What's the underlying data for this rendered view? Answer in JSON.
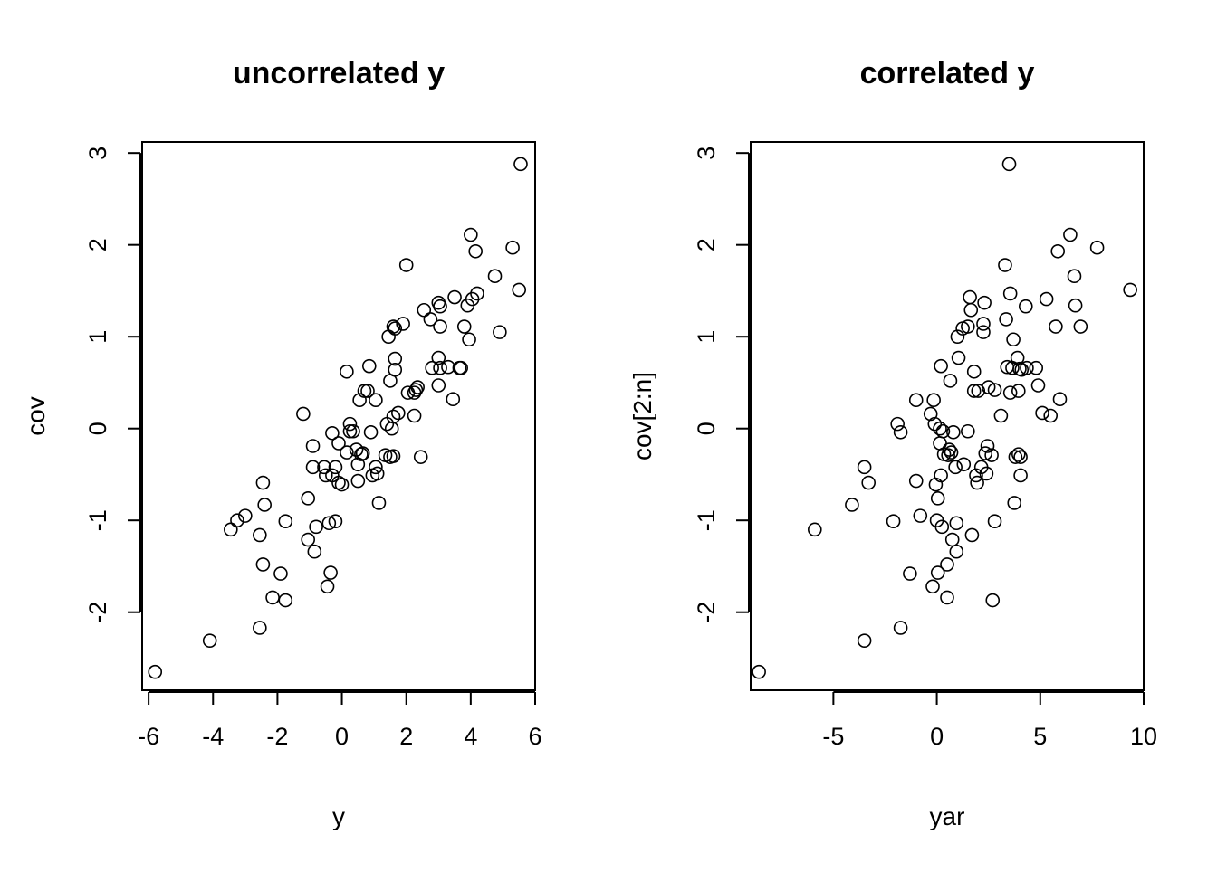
{
  "chart_data": [
    {
      "type": "scatter",
      "title": "uncorrelated y",
      "xlabel": "y",
      "ylabel": "cov",
      "xlim": [
        -6.2,
        6.0
      ],
      "ylim": [
        -2.85,
        3.12
      ],
      "xticks": [
        -6,
        -4,
        -2,
        0,
        2,
        4,
        6
      ],
      "yticks": [
        -2,
        -1,
        0,
        1,
        2,
        3
      ],
      "grid": false,
      "points": [
        [
          -5.8,
          -2.65
        ],
        [
          -4.1,
          -2.31
        ],
        [
          -3.45,
          -1.1
        ],
        [
          -3.25,
          -1.0
        ],
        [
          -3.0,
          -0.95
        ],
        [
          -2.55,
          -1.16
        ],
        [
          -2.45,
          -0.59
        ],
        [
          -2.4,
          -0.83
        ],
        [
          -2.45,
          -1.48
        ],
        [
          -2.55,
          -2.17
        ],
        [
          -2.15,
          -1.84
        ],
        [
          -1.9,
          -1.58
        ],
        [
          -1.75,
          -1.87
        ],
        [
          -1.75,
          -1.01
        ],
        [
          -1.2,
          0.16
        ],
        [
          -1.05,
          -0.76
        ],
        [
          -1.05,
          -1.21
        ],
        [
          -0.9,
          -0.19
        ],
        [
          -0.9,
          -0.42
        ],
        [
          -0.85,
          -1.34
        ],
        [
          -0.8,
          -1.07
        ],
        [
          -0.55,
          -0.42
        ],
        [
          -0.5,
          -0.51
        ],
        [
          -0.45,
          -1.72
        ],
        [
          -0.4,
          -1.03
        ],
        [
          -0.35,
          -1.57
        ],
        [
          -0.3,
          -0.05
        ],
        [
          -0.3,
          -0.51
        ],
        [
          -0.2,
          -0.42
        ],
        [
          -0.2,
          -1.01
        ],
        [
          -0.1,
          -0.16
        ],
        [
          -0.1,
          -0.59
        ],
        [
          0.0,
          -0.61
        ],
        [
          0.15,
          0.62
        ],
        [
          0.15,
          -0.26
        ],
        [
          0.25,
          0.05
        ],
        [
          0.25,
          -0.03
        ],
        [
          0.35,
          -0.03
        ],
        [
          0.45,
          -0.23
        ],
        [
          0.5,
          -0.39
        ],
        [
          0.5,
          -0.57
        ],
        [
          0.55,
          0.31
        ],
        [
          0.6,
          -0.28
        ],
        [
          0.65,
          -0.27
        ],
        [
          0.7,
          0.41
        ],
        [
          0.8,
          0.41
        ],
        [
          0.85,
          0.68
        ],
        [
          0.9,
          -0.04
        ],
        [
          0.95,
          -0.51
        ],
        [
          1.05,
          0.31
        ],
        [
          1.05,
          -0.42
        ],
        [
          1.1,
          -0.49
        ],
        [
          1.15,
          -0.81
        ],
        [
          1.35,
          -0.29
        ],
        [
          1.4,
          0.05
        ],
        [
          1.45,
          1.0
        ],
        [
          1.5,
          0.52
        ],
        [
          1.5,
          -0.31
        ],
        [
          1.55,
          0.0
        ],
        [
          1.6,
          -0.3
        ],
        [
          1.6,
          0.13
        ],
        [
          1.6,
          1.11
        ],
        [
          1.65,
          1.09
        ],
        [
          1.65,
          0.64
        ],
        [
          1.65,
          0.76
        ],
        [
          1.75,
          0.17
        ],
        [
          1.9,
          1.14
        ],
        [
          2.0,
          1.78
        ],
        [
          2.05,
          0.39
        ],
        [
          2.25,
          0.39
        ],
        [
          2.25,
          0.14
        ],
        [
          2.3,
          0.42
        ],
        [
          2.35,
          0.45
        ],
        [
          2.45,
          -0.31
        ],
        [
          2.55,
          1.29
        ],
        [
          2.75,
          1.19
        ],
        [
          2.8,
          0.66
        ],
        [
          3.0,
          1.37
        ],
        [
          3.0,
          0.77
        ],
        [
          3.0,
          0.47
        ],
        [
          3.05,
          1.33
        ],
        [
          3.05,
          1.11
        ],
        [
          3.05,
          0.66
        ],
        [
          3.3,
          0.67
        ],
        [
          3.45,
          0.32
        ],
        [
          3.5,
          1.43
        ],
        [
          3.65,
          0.66
        ],
        [
          3.7,
          0.66
        ],
        [
          3.8,
          1.11
        ],
        [
          3.9,
          1.34
        ],
        [
          3.95,
          0.97
        ],
        [
          4.0,
          2.11
        ],
        [
          4.05,
          1.41
        ],
        [
          4.15,
          1.93
        ],
        [
          4.2,
          1.47
        ],
        [
          4.75,
          1.66
        ],
        [
          4.9,
          1.05
        ],
        [
          5.3,
          1.97
        ],
        [
          5.5,
          1.51
        ],
        [
          5.55,
          2.88
        ]
      ]
    },
    {
      "type": "scatter",
      "title": "correlated y",
      "xlabel": "yar",
      "ylabel": "cov[2:n]",
      "xlim": [
        -9.0,
        10.0
      ],
      "ylim": [
        -2.85,
        3.12
      ],
      "xticks": [
        -5,
        0,
        5,
        10
      ],
      "yticks": [
        -2,
        -1,
        0,
        1,
        2,
        3
      ],
      "grid": false,
      "points": [
        [
          -8.6,
          -2.65
        ],
        [
          -5.9,
          -1.1
        ],
        [
          -4.1,
          -0.83
        ],
        [
          -3.5,
          -0.42
        ],
        [
          -3.5,
          -2.31
        ],
        [
          -3.3,
          -0.59
        ],
        [
          -2.1,
          -1.01
        ],
        [
          -1.9,
          0.05
        ],
        [
          -1.75,
          -2.17
        ],
        [
          -1.75,
          -0.04
        ],
        [
          -1.3,
          -1.58
        ],
        [
          -1.0,
          0.31
        ],
        [
          -1.0,
          -0.57
        ],
        [
          -0.8,
          -0.95
        ],
        [
          -0.3,
          0.16
        ],
        [
          -0.2,
          -1.72
        ],
        [
          -0.15,
          0.31
        ],
        [
          -0.1,
          0.05
        ],
        [
          -0.05,
          -0.61
        ],
        [
          0.0,
          -1.0
        ],
        [
          0.05,
          -1.57
        ],
        [
          0.05,
          -0.76
        ],
        [
          0.15,
          -0.16
        ],
        [
          0.15,
          0.0
        ],
        [
          0.2,
          0.68
        ],
        [
          0.2,
          -0.51
        ],
        [
          0.25,
          -1.07
        ],
        [
          0.3,
          -0.03
        ],
        [
          0.35,
          -0.28
        ],
        [
          0.5,
          -1.48
        ],
        [
          0.5,
          -1.84
        ],
        [
          0.55,
          -0.29
        ],
        [
          0.6,
          -0.23
        ],
        [
          0.65,
          0.52
        ],
        [
          0.7,
          -0.26
        ],
        [
          0.75,
          -1.21
        ],
        [
          0.8,
          -0.04
        ],
        [
          0.9,
          -0.42
        ],
        [
          0.95,
          -1.34
        ],
        [
          0.95,
          -1.03
        ],
        [
          1.0,
          1.0
        ],
        [
          1.05,
          0.77
        ],
        [
          1.25,
          1.09
        ],
        [
          1.3,
          -0.39
        ],
        [
          1.5,
          1.11
        ],
        [
          1.5,
          -0.03
        ],
        [
          1.6,
          1.43
        ],
        [
          1.65,
          1.29
        ],
        [
          1.7,
          -1.16
        ],
        [
          1.8,
          0.62
        ],
        [
          1.8,
          0.41
        ],
        [
          1.9,
          -0.51
        ],
        [
          1.95,
          -0.59
        ],
        [
          2.0,
          0.41
        ],
        [
          2.15,
          -0.42
        ],
        [
          2.25,
          1.14
        ],
        [
          2.25,
          1.05
        ],
        [
          2.3,
          1.37
        ],
        [
          2.35,
          -0.27
        ],
        [
          2.4,
          -0.49
        ],
        [
          2.45,
          -0.19
        ],
        [
          2.5,
          0.45
        ],
        [
          2.65,
          -0.29
        ],
        [
          2.7,
          -1.87
        ],
        [
          2.8,
          0.42
        ],
        [
          2.8,
          -1.01
        ],
        [
          3.1,
          0.14
        ],
        [
          3.3,
          1.78
        ],
        [
          3.35,
          1.19
        ],
        [
          3.4,
          0.67
        ],
        [
          3.5,
          2.88
        ],
        [
          3.55,
          1.47
        ],
        [
          3.55,
          0.39
        ],
        [
          3.65,
          0.66
        ],
        [
          3.7,
          0.97
        ],
        [
          3.75,
          -0.81
        ],
        [
          3.8,
          -0.31
        ],
        [
          3.9,
          0.77
        ],
        [
          3.95,
          -0.28
        ],
        [
          3.95,
          0.41
        ],
        [
          4.0,
          0.65
        ],
        [
          4.05,
          -0.51
        ],
        [
          4.05,
          -0.31
        ],
        [
          4.1,
          0.64
        ],
        [
          4.3,
          1.33
        ],
        [
          4.35,
          0.66
        ],
        [
          4.8,
          0.66
        ],
        [
          4.9,
          0.47
        ],
        [
          5.1,
          0.17
        ],
        [
          5.3,
          1.41
        ],
        [
          5.5,
          0.14
        ],
        [
          5.75,
          1.11
        ],
        [
          5.85,
          1.93
        ],
        [
          5.95,
          0.32
        ],
        [
          6.45,
          2.11
        ],
        [
          6.65,
          1.66
        ],
        [
          6.7,
          1.34
        ],
        [
          6.95,
          1.11
        ],
        [
          7.75,
          1.97
        ],
        [
          9.35,
          1.51
        ]
      ]
    }
  ]
}
